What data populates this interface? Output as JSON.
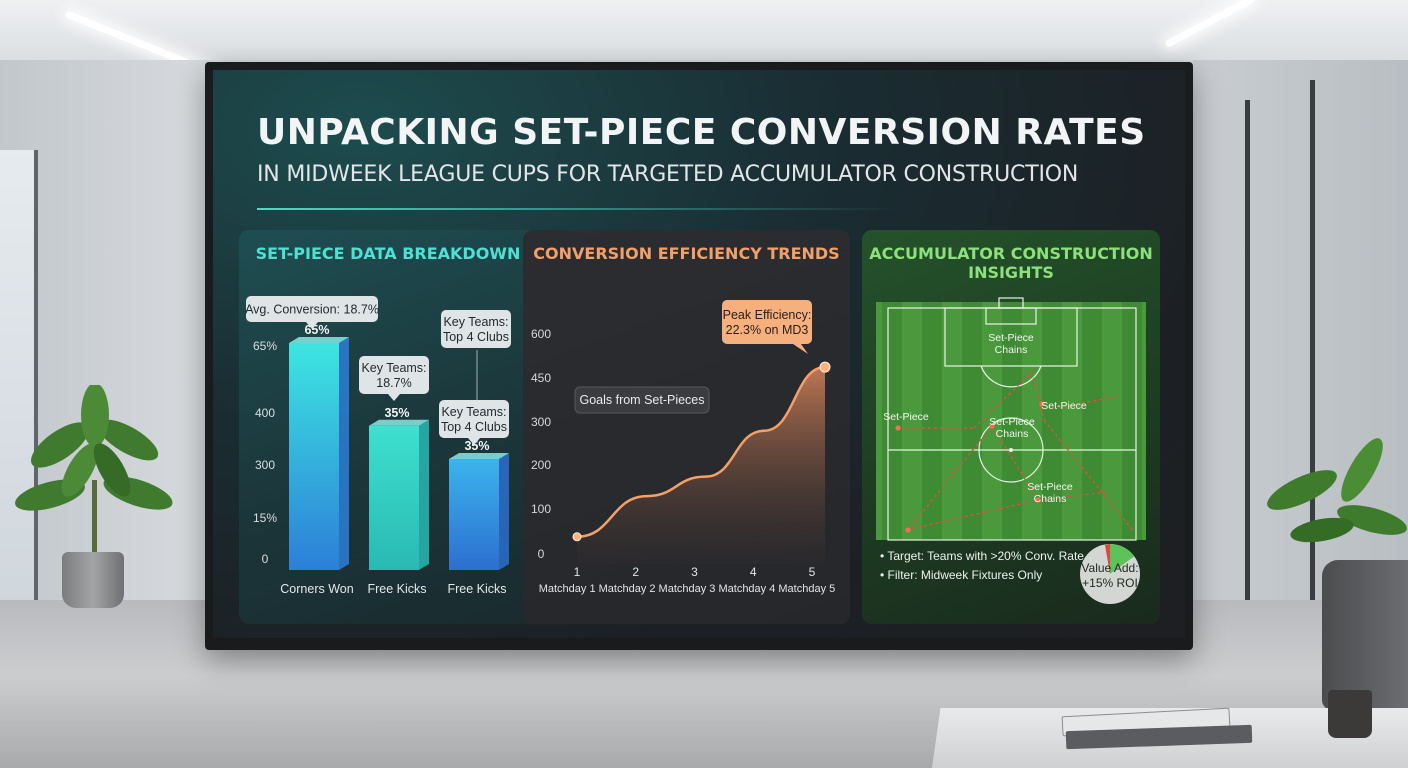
{
  "title": "UNPACKING SET-PIECE CONVERSION RATES",
  "subtitle": "IN MIDWEEK LEAGUE CUPS FOR TARGETED ACCUMULATOR CONSTRUCTION",
  "colors": {
    "teal": "#3fe0d0",
    "orange": "#f2a06a",
    "green": "#8de07a"
  },
  "chart_data": [
    {
      "type": "bar",
      "title": "SET-PIECE DATA BREAKDOWN",
      "categories": [
        "Corners Won",
        "Free Kicks",
        "Free Kicks"
      ],
      "values": [
        65,
        35,
        35
      ],
      "value_labels": [
        "65%",
        "35%",
        "35%"
      ],
      "y_ticks": [
        "65%",
        "400",
        "300",
        "15%",
        "0"
      ],
      "callouts": [
        "Avg. Conversion: 18.7%",
        "Key Teams:\n18.7%",
        "Key Teams:\nTop 4 Clubs",
        "Key Teams:\nTop 4 Clubs"
      ],
      "colors": [
        "#2fd8d2",
        "#2cd4c4",
        "#3aa0e0"
      ]
    },
    {
      "type": "area",
      "title": "CONVERSION EFFICIENCY TRENDS",
      "x_tick_numbers": [
        "1",
        "2",
        "3",
        "4",
        "5"
      ],
      "x_tick_labels": [
        "Matchday 1",
        "Matchday 2",
        "Matchday 3",
        "Matchday 4",
        "Matchday 5"
      ],
      "y_ticks": [
        "600",
        "450",
        "300",
        "200",
        "100",
        "0"
      ],
      "x": [
        1,
        2,
        3,
        4,
        5
      ],
      "values": [
        60,
        175,
        230,
        360,
        540
      ],
      "series_label": "Goals from Set-Pieces",
      "peak_callout": "Peak Efficiency:\n22.3% on MD3"
    }
  ],
  "insights": {
    "title_line1": "ACCUMULATOR CONSTRUCTION",
    "title_line2": "INSIGHTS",
    "pitch_labels": [
      "Set-Piece\nChains",
      "Set-Piece",
      "Set-Piece\nChains",
      "Set-Piece",
      "Set-Piece\nChains"
    ],
    "bullets": [
      "• Target: Teams with >20% Conv. Rate",
      "• Filter: Midweek Fixtures Only"
    ],
    "value_add_line1": "Value Add:",
    "value_add_line2": "+15% ROI",
    "value_add_fraction": 0.15
  }
}
